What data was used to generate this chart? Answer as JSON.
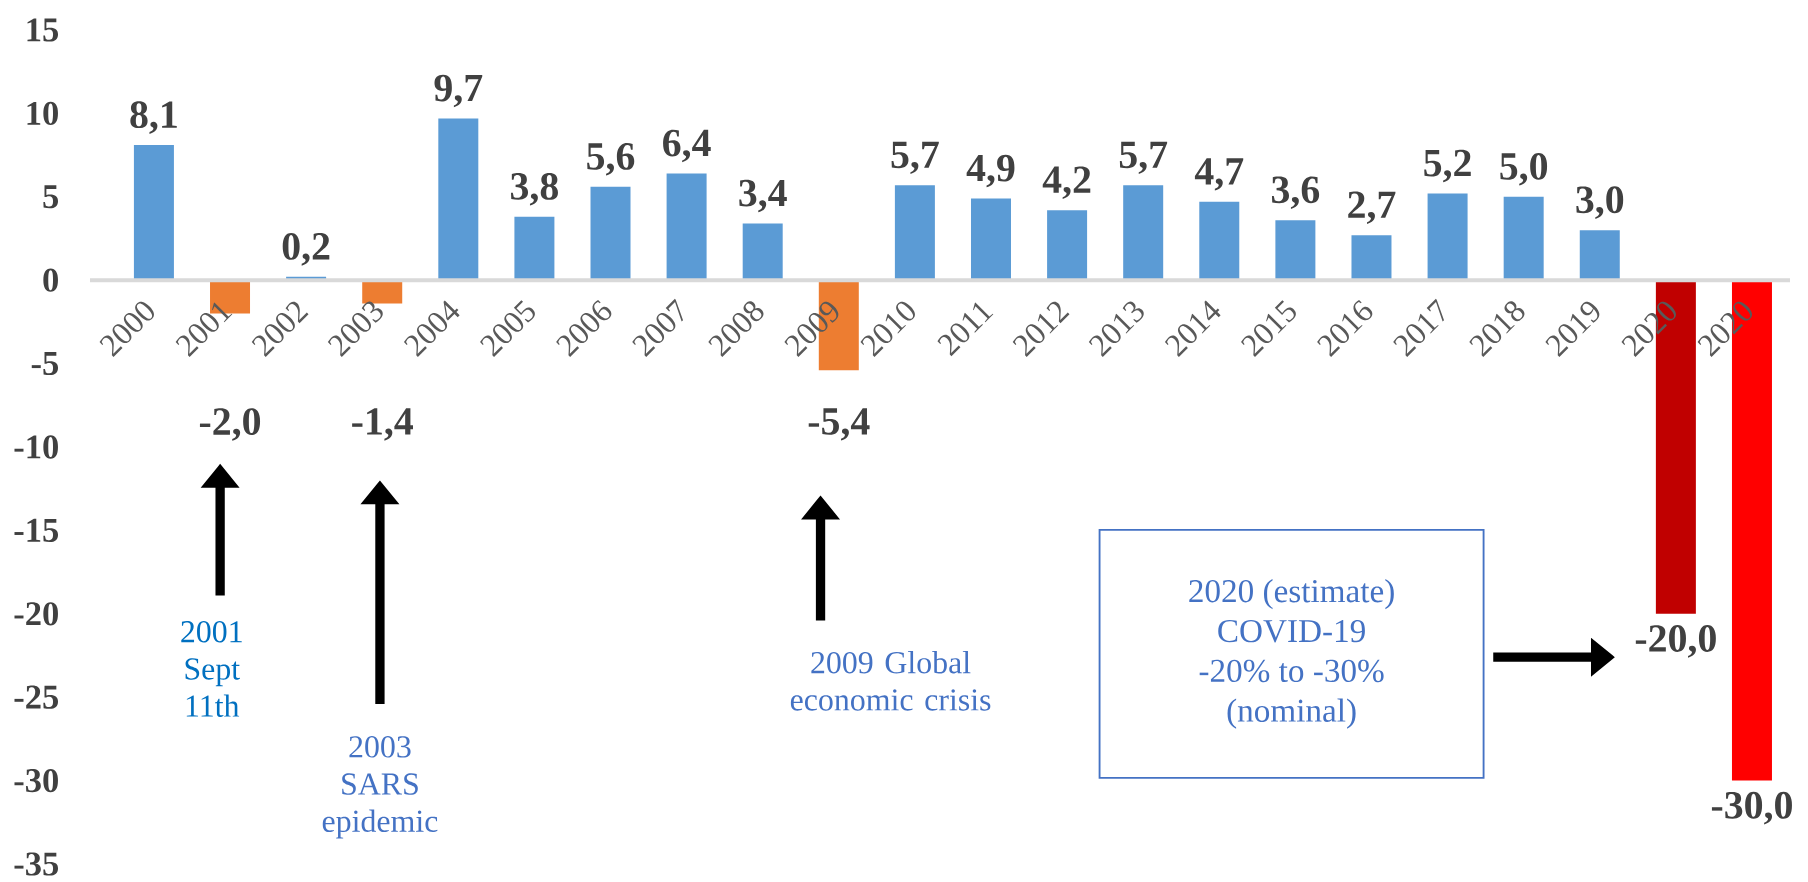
{
  "chart_data": {
    "type": "bar",
    "categories": [
      "2000",
      "2001",
      "2002",
      "2003",
      "2004",
      "2005",
      "2006",
      "2007",
      "2008",
      "2009",
      "2010",
      "2011",
      "2012",
      "2013",
      "2014",
      "2015",
      "2016",
      "2017",
      "2018",
      "2019",
      "2020",
      "2020"
    ],
    "values": [
      8.1,
      -2.0,
      0.2,
      -1.4,
      9.7,
      3.8,
      5.6,
      6.4,
      3.4,
      -5.4,
      5.7,
      4.9,
      4.2,
      5.7,
      4.7,
      3.6,
      2.7,
      5.2,
      5.0,
      3.0,
      -20.0,
      -30.0
    ],
    "colors": [
      "#5b9bd5",
      "#ed7d31",
      "#5b9bd5",
      "#ed7d31",
      "#5b9bd5",
      "#5b9bd5",
      "#5b9bd5",
      "#5b9bd5",
      "#5b9bd5",
      "#ed7d31",
      "#5b9bd5",
      "#5b9bd5",
      "#5b9bd5",
      "#5b9bd5",
      "#5b9bd5",
      "#5b9bd5",
      "#5b9bd5",
      "#5b9bd5",
      "#5b9bd5",
      "#5b9bd5",
      "#c00000",
      "#ff0000"
    ],
    "value_labels": [
      "8,1",
      "-2,0",
      "0,2",
      "-1,4",
      "9,7",
      "3,8",
      "5,6",
      "6,4",
      "3,4",
      "-5,4",
      "5,7",
      "4,9",
      "4,2",
      "5,7",
      "4,7",
      "3,6",
      "2,7",
      "5,2",
      "5,0",
      "3,0",
      "-20,0",
      "-30,0"
    ],
    "ylim": [
      -35,
      15
    ],
    "yticks": [
      -35,
      -30,
      -25,
      -20,
      -15,
      -10,
      -5,
      0,
      5,
      10,
      15
    ],
    "annotations": [
      "2001 Sept 11th",
      "2003 SARS epidemic",
      "2009 Global economic crisis",
      "2020 (estimate)",
      "COVID-19",
      "-20% to -30%",
      "(nominal)"
    ]
  }
}
